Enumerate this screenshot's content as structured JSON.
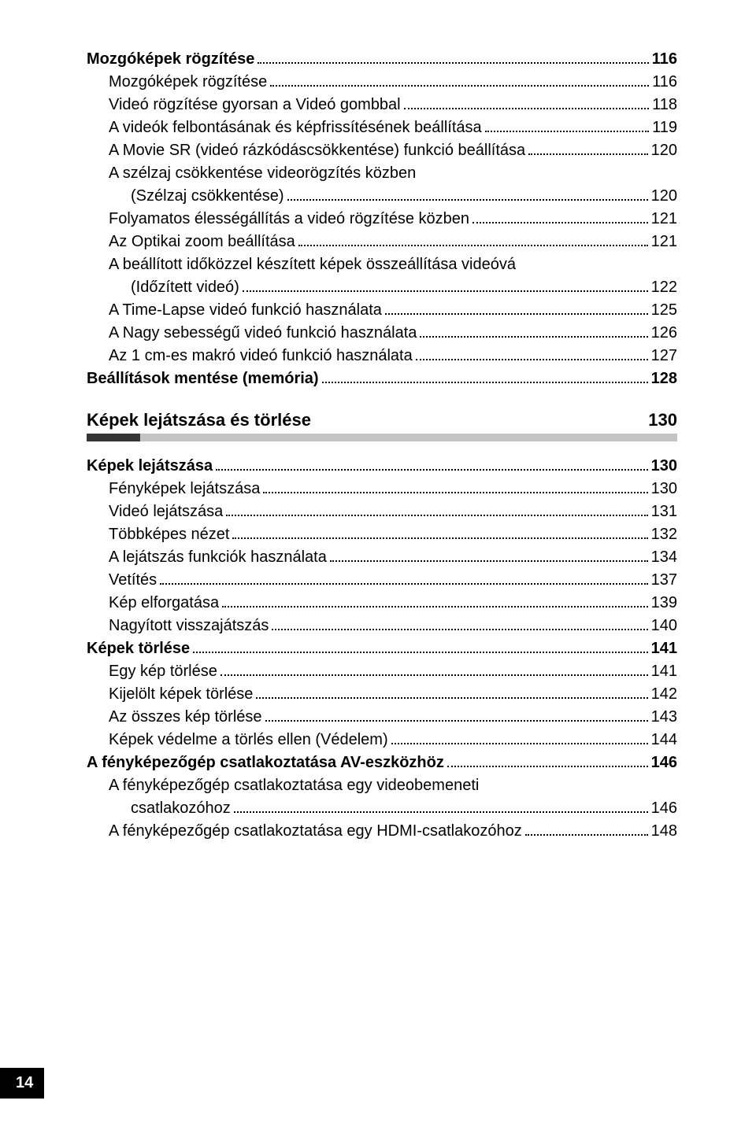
{
  "entries_top": [
    {
      "text": "Mozgóképek rögzítése",
      "page": "116",
      "bold": true,
      "indent": 0
    },
    {
      "text": "Mozgóképek rögzítése",
      "page": "116",
      "bold": false,
      "indent": 1
    },
    {
      "text": "Videó rögzítése gyorsan a Videó gombbal",
      "page": "118",
      "bold": false,
      "indent": 1
    },
    {
      "text": "A videók felbontásának és képfrissítésének beállítása",
      "page": "119",
      "bold": false,
      "indent": 1
    },
    {
      "text": "A Movie SR (videó rázkódáscsökkentése) funkció beállítása",
      "page": "120",
      "bold": false,
      "indent": 1
    },
    {
      "text": "A szélzaj csökkentése videorögzítés közben",
      "page": "",
      "bold": false,
      "indent": 1,
      "nowrapPage": true
    },
    {
      "text": "(Szélzaj csökkentése)",
      "page": "120",
      "bold": false,
      "indent": 2
    },
    {
      "text": "Folyamatos élességállítás a videó rögzítése közben",
      "page": "121",
      "bold": false,
      "indent": 1
    },
    {
      "text": "Az Optikai zoom beállítása",
      "page": "121",
      "bold": false,
      "indent": 1
    },
    {
      "text": "A beállított időközzel készített képek összeállítása videóvá",
      "page": "",
      "bold": false,
      "indent": 1,
      "nowrapPage": true
    },
    {
      "text": "(Időzített videó)",
      "page": "122",
      "bold": false,
      "indent": 2
    },
    {
      "text": "A Time-Lapse videó funkció használata",
      "page": "125",
      "bold": false,
      "indent": 1
    },
    {
      "text": "A Nagy sebességű videó funkció használata",
      "page": "126",
      "bold": false,
      "indent": 1
    },
    {
      "text": "Az 1 cm-es makró videó funkció használata",
      "page": "127",
      "bold": false,
      "indent": 1
    },
    {
      "text": "Beállítások mentése (memória)",
      "page": "128",
      "bold": true,
      "indent": 0
    }
  ],
  "section": {
    "title": "Képek lejátszása és törlése",
    "page": "130"
  },
  "entries_bottom": [
    {
      "text": "Képek lejátszása",
      "page": "130",
      "bold": true,
      "indent": 0
    },
    {
      "text": "Fényképek lejátszása",
      "page": "130",
      "bold": false,
      "indent": 1
    },
    {
      "text": "Videó lejátszása",
      "page": "131",
      "bold": false,
      "indent": 1
    },
    {
      "text": "Többképes nézet",
      "page": "132",
      "bold": false,
      "indent": 1
    },
    {
      "text": "A lejátszás funkciók használata",
      "page": "134",
      "bold": false,
      "indent": 1
    },
    {
      "text": "Vetítés",
      "page": "137",
      "bold": false,
      "indent": 1
    },
    {
      "text": "Kép elforgatása",
      "page": "139",
      "bold": false,
      "indent": 1
    },
    {
      "text": "Nagyított visszajátszás",
      "page": "140",
      "bold": false,
      "indent": 1
    },
    {
      "text": "Képek törlése",
      "page": "141",
      "bold": true,
      "indent": 0
    },
    {
      "text": "Egy kép törlése",
      "page": "141",
      "bold": false,
      "indent": 1
    },
    {
      "text": "Kijelölt képek törlése",
      "page": "142",
      "bold": false,
      "indent": 1
    },
    {
      "text": "Az összes kép törlése",
      "page": "143",
      "bold": false,
      "indent": 1
    },
    {
      "text": "Képek védelme a törlés ellen (Védelem)",
      "page": "144",
      "bold": false,
      "indent": 1
    },
    {
      "text": "A fényképezőgép csatlakoztatása AV-eszközhöz",
      "page": "146",
      "bold": true,
      "indent": 0
    },
    {
      "text": "A fényképezőgép csatlakoztatása egy videobemeneti",
      "page": "",
      "bold": false,
      "indent": 1,
      "nowrapPage": true
    },
    {
      "text": "csatlakozóhoz",
      "page": "146",
      "bold": false,
      "indent": 2
    },
    {
      "text": "A fényképezőgép csatlakoztatása egy HDMI-csatlakozóhoz",
      "page": "148",
      "bold": false,
      "indent": 1
    }
  ],
  "page_number": "14"
}
